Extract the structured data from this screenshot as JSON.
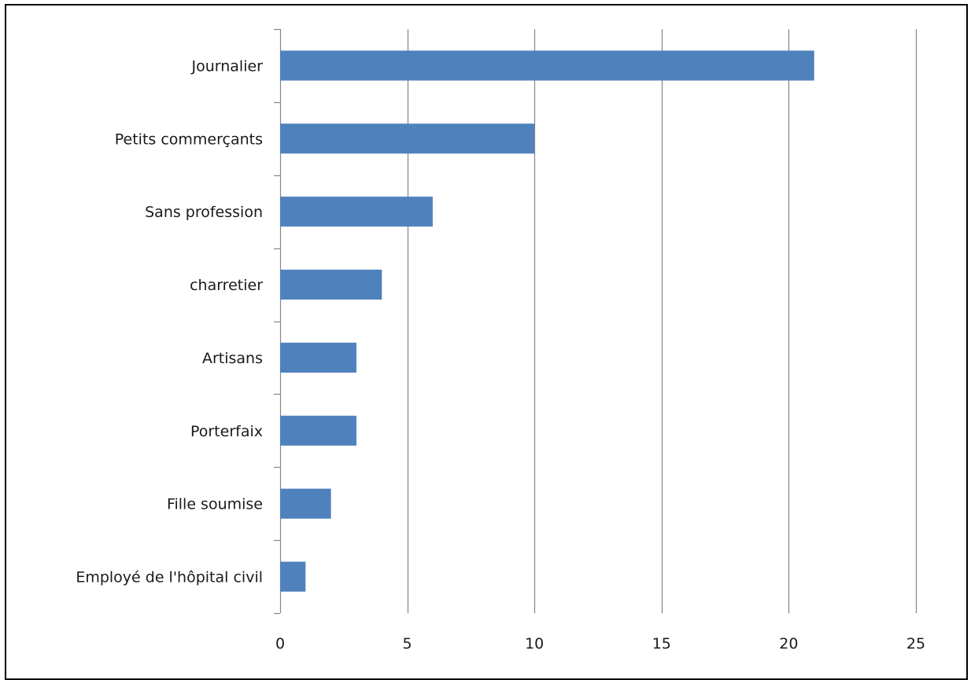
{
  "chart_data": {
    "type": "bar",
    "orientation": "horizontal",
    "title": "",
    "xlabel": "",
    "ylabel": "",
    "categories": [
      "Journalier",
      "Petits commerçants",
      "Sans profession",
      "charretier",
      "Artisans",
      "Porterfaix",
      "Fille soumise",
      "Employé de l'hôpital civil"
    ],
    "values": [
      21,
      10,
      6,
      4,
      3,
      3,
      2,
      1
    ],
    "xlim": [
      0,
      25
    ],
    "xticks": [
      0,
      5,
      10,
      15,
      20,
      25
    ],
    "xtick_labels": [
      "0",
      "5",
      "10",
      "15",
      "20",
      "25"
    ],
    "grid": "vertical",
    "legend": "none",
    "bar_color": "#4f81bd",
    "grid_color": "#868686"
  }
}
